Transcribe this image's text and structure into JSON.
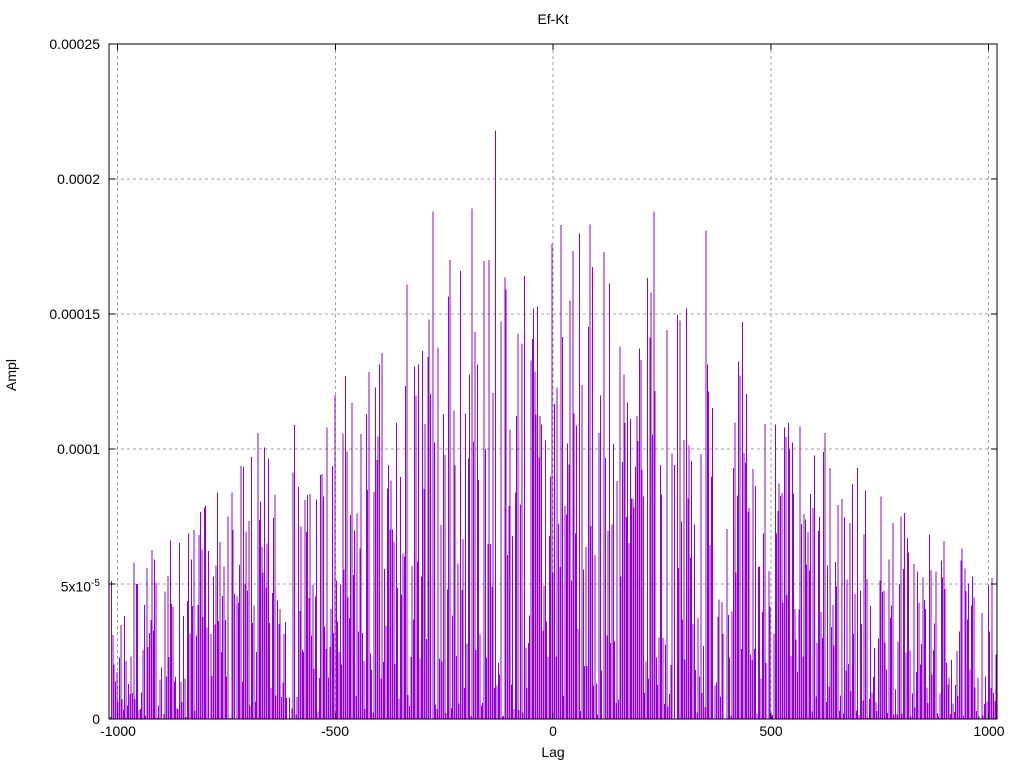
{
  "chart_data": {
    "type": "impulses",
    "title": "Ef-Kt",
    "series_name": "Ef-Kt",
    "x_axis": {
      "label": "Lag",
      "tick_values": [
        -1000,
        -500,
        0,
        500,
        1000
      ],
      "tick_labels": [
        "-1000",
        "-500",
        "0",
        "500",
        "1000"
      ]
    },
    "y_axis": {
      "label": "Ampl",
      "tick_values": [
        0,
        5e-05,
        0.0001,
        0.00015,
        0.0002,
        0.00025
      ],
      "tick_labels": [
        "0",
        "5x10^-5",
        "0.0001",
        "0.00015",
        "0.0002",
        "0.00025"
      ],
      "superscript_tick": {
        "base": "5x10",
        "sup": "-5"
      }
    },
    "xlim": [
      -1020,
      1019
    ],
    "ylim": [
      0,
      0.00025
    ],
    "grid": "dashed",
    "legend": "none",
    "colors": {
      "line": "#9400d3",
      "grid": "#9e9e9e",
      "frame": "#000000",
      "text": "#000000",
      "background": "#ffffff"
    },
    "envelope": {
      "shape": "triangular",
      "center_amplitude": 0.000195,
      "edge_amplitude": 5.2e-05,
      "half_width": 1020
    },
    "noise": {
      "seed": 7,
      "exponent": 1.5,
      "lag_step": 3
    },
    "major_peaks": [
      [
        -955,
        5e-05
      ],
      [
        -885,
        5.3e-05
      ],
      [
        -746,
        7.5e-05
      ],
      [
        -678,
        0.000106
      ],
      [
        -585,
        8.6e-05
      ],
      [
        -476,
        0.000127
      ],
      [
        -428,
        0.000113
      ],
      [
        -336,
        0.000161
      ],
      [
        -277,
        0.000188
      ],
      [
        -238,
        0.00017
      ],
      [
        -214,
        0.000166
      ],
      [
        -187,
        0.000189
      ],
      [
        -148,
        0.00017
      ],
      [
        -131,
        0.000218
      ],
      [
        -72,
        0.000139
      ],
      [
        -3,
        0.000176
      ],
      [
        18,
        0.000183
      ],
      [
        38,
        0.000155
      ],
      [
        116,
        0.000173
      ],
      [
        153,
        0.000138
      ],
      [
        226,
        0.000158
      ],
      [
        232,
        0.000188
      ],
      [
        307,
        0.000152
      ],
      [
        350,
        0.000181
      ],
      [
        435,
        0.000147
      ],
      [
        509,
        0.000109
      ],
      [
        543,
        0.0001
      ],
      [
        637,
        9.3e-05
      ],
      [
        688,
        8.7e-05
      ],
      [
        771,
        5.9e-05
      ]
    ]
  }
}
